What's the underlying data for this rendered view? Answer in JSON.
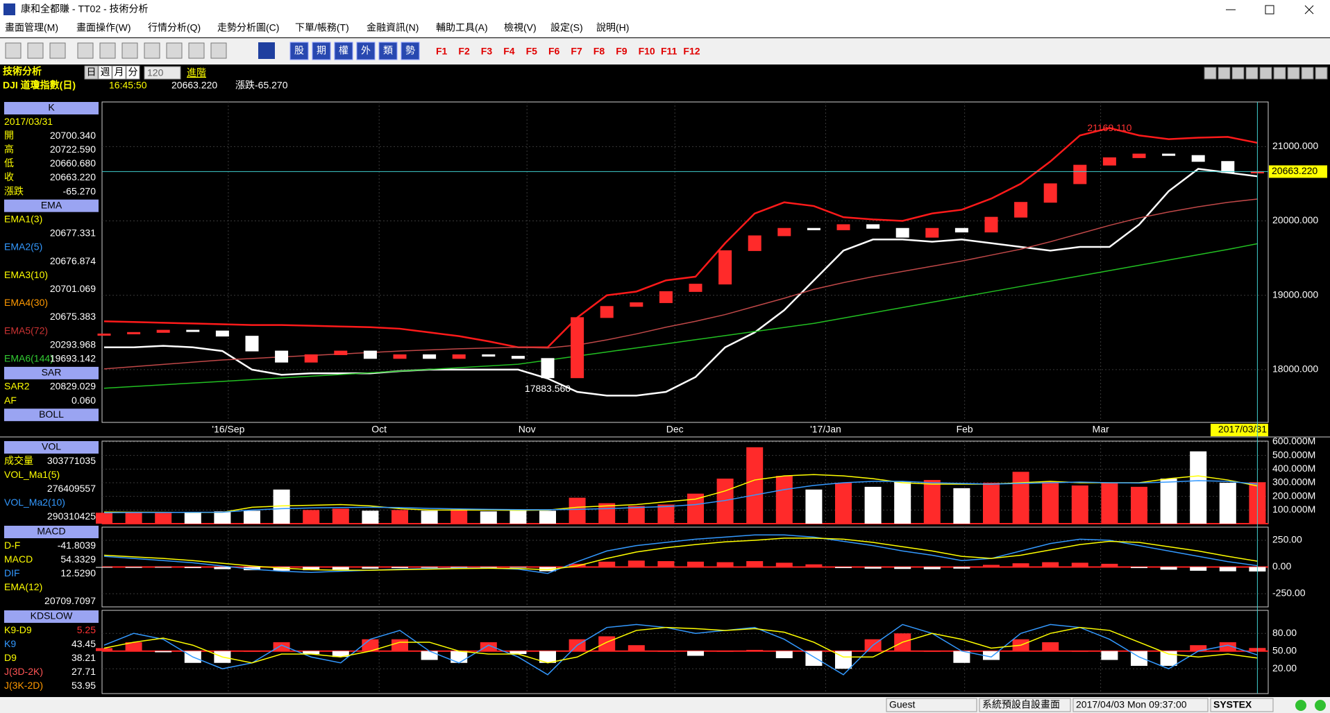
{
  "window": {
    "title": "康和全都賺 - TT02 - 技術分析"
  },
  "menu": [
    "畫面管理(M)",
    "畫面操作(W)",
    "行情分析(Q)",
    "走勢分析圖(C)",
    "下單/帳務(T)",
    "金融資訊(N)",
    "輔助工具(A)",
    "檢視(V)",
    "設定(S)",
    "說明(H)"
  ],
  "toolbar": {
    "buttons": [
      "股",
      "期",
      "權",
      "外",
      "類",
      "勢"
    ],
    "keys": [
      "F1",
      "F2",
      "F3",
      "F4",
      "F5",
      "F6",
      "F7",
      "F8",
      "F9",
      "F10",
      "F11",
      "F12"
    ]
  },
  "info": {
    "title": "技術分析",
    "periods": [
      "日",
      "週",
      "月",
      "分"
    ],
    "count": "120",
    "advanced": "進階",
    "symbol": "DJI  道瓊指數(日)",
    "time": "16:45:50",
    "price": "20663.220",
    "change": "漲跌-65.270"
  },
  "panel": [
    [
      {
        "header": "K"
      },
      {
        "label": "2017/03/31"
      },
      {
        "label": "開",
        "value": "20700.340"
      },
      {
        "label": "高",
        "value": "20722.590"
      },
      {
        "label": "低",
        "value": "20660.680"
      },
      {
        "label": "收",
        "value": "20663.220"
      },
      {
        "label": "漲跌",
        "value": "-65.270"
      },
      {
        "header": "EMA"
      },
      {
        "label": "EMA1(3)"
      },
      {
        "value": "20677.331"
      },
      {
        "label": "EMA2(5)",
        "color": "#3399ff"
      },
      {
        "value": "20676.874"
      },
      {
        "label": "EMA3(10)"
      },
      {
        "value": "20701.069"
      },
      {
        "label": "EMA4(30)",
        "color": "#ff9900"
      },
      {
        "value": "20675.383"
      },
      {
        "label": "EMA5(72)",
        "color": "#cc3333"
      },
      {
        "value": "20293.968"
      },
      {
        "label": "EMA6(144)",
        "color": "#33cc33",
        "value": "19693.142"
      },
      {
        "header": "SAR"
      },
      {
        "label": "SAR2",
        "value": "20829.029"
      },
      {
        "label": "AF",
        "value": "0.060"
      },
      {
        "header": "BOLL"
      }
    ],
    [
      {
        "header": "VOL"
      },
      {
        "label": "成交量",
        "value": "303771035"
      },
      {
        "label": "VOL_Ma1(5)"
      },
      {
        "value": "276409557"
      },
      {
        "label": "VOL_Ma2(10)",
        "color": "#3399ff"
      },
      {
        "value": "290310425"
      }
    ],
    [
      {
        "header": "MACD"
      },
      {
        "label": "D-F",
        "value": "-41.8039"
      },
      {
        "label": "MACD",
        "value": "54.3329"
      },
      {
        "label": "DIF",
        "color": "#3399ff",
        "value": "12.5290"
      },
      {
        "label": "EMA(12)"
      },
      {
        "value": "20709.7097"
      }
    ],
    [
      {
        "header": "KDSLOW"
      },
      {
        "label": "K9-D9",
        "value": "5.25",
        "value_color": "#ff3333"
      },
      {
        "label": "K9",
        "color": "#3399ff",
        "value": "43.45"
      },
      {
        "label": "D9",
        "value": "38.21"
      },
      {
        "label": "J(3D-2K)",
        "color": "#ff5555",
        "value": "27.71"
      },
      {
        "label": "J(3K-2D)",
        "color": "#ff9900",
        "value": "53.95"
      }
    ]
  ],
  "status": [
    "Guest",
    "系統預設自設畫面",
    "2017/04/03 Mon 09:37:00",
    "SYSTEX"
  ],
  "chart_data": [
    {
      "type": "line",
      "ylim": [
        17290,
        21600
      ],
      "yticks": [
        {
          "value": 18000,
          "label": "18000.000"
        },
        {
          "value": 19000,
          "label": "19000.000"
        },
        {
          "value": 20000,
          "label": "20000.000"
        },
        {
          "value": 21000,
          "label": "21000.000"
        }
      ],
      "xticks": [
        {
          "value": 4.2,
          "label": "'16/Sep"
        },
        {
          "value": 9.3,
          "label": "Oct"
        },
        {
          "value": 14.3,
          "label": "Nov"
        },
        {
          "value": 19.3,
          "label": "Dec"
        },
        {
          "value": 24.4,
          "label": "'17/Jan"
        },
        {
          "value": 29.1,
          "label": "Feb"
        },
        {
          "value": 33.7,
          "label": "Mar"
        }
      ],
      "cursor_date": "2017/03/31",
      "series": [
        {
          "color": "#ff1a1a",
          "values": [
            18650,
            18640,
            18630,
            18620,
            18610,
            18600,
            18600,
            18590,
            18580,
            18570,
            18550,
            18500,
            18450,
            18380,
            18300,
            18300,
            18700,
            19000,
            19050,
            19200,
            19250,
            19700,
            20100,
            20250,
            20200,
            20050,
            20020,
            20000,
            20100,
            20150,
            20300,
            20500,
            20800,
            21150,
            21250,
            21150,
            21100,
            21120,
            21130,
            21050
          ]
        },
        {
          "color": "#ffffff",
          "values": [
            18300,
            18300,
            18320,
            18300,
            18250,
            18000,
            17930,
            17950,
            17950,
            17950,
            17980,
            18000,
            18000,
            18000,
            18000,
            17880,
            17700,
            17650,
            17650,
            17700,
            17900,
            18300,
            18500,
            18800,
            19200,
            19600,
            19750,
            19750,
            19720,
            19750,
            19700,
            19650,
            19600,
            19650,
            19650,
            19950,
            20400,
            20700,
            20650,
            20600
          ]
        },
        {
          "color": "#c04848",
          "values": [
            18010,
            18040,
            18070,
            18100,
            18130,
            18150,
            18170,
            18190,
            18210,
            18230,
            18250,
            18265,
            18280,
            18290,
            18300,
            18290,
            18330,
            18400,
            18480,
            18570,
            18650,
            18740,
            18850,
            18960,
            19080,
            19170,
            19250,
            19320,
            19390,
            19460,
            19540,
            19620,
            19720,
            19830,
            19940,
            20040,
            20120,
            20190,
            20250,
            20294
          ]
        },
        {
          "color": "#22c022",
          "values": [
            17750,
            17773,
            17796,
            17819,
            17842,
            17865,
            17888,
            17911,
            17934,
            17957,
            17980,
            18003,
            18026,
            18049,
            18072,
            18127,
            18182,
            18237,
            18292,
            18347,
            18402,
            18457,
            18512,
            18567,
            18622,
            18693,
            18764,
            18835,
            18906,
            18977,
            19048,
            19119,
            19190,
            19261,
            19332,
            19403,
            19474,
            19545,
            19616,
            19693
          ]
        },
        {
          "style": "candle",
          "color": "#ff2a2a",
          "down_color": "#ffffff",
          "values": [
            18480,
            18500,
            18530,
            18520,
            18450,
            18250,
            18100,
            18200,
            18250,
            18150,
            18200,
            18150,
            18200,
            18180,
            18150,
            17890,
            18700,
            18850,
            18900,
            19050,
            19150,
            19600,
            19800,
            19900,
            19880,
            19950,
            19900,
            19780,
            19900,
            19850,
            20050,
            20250,
            20500,
            20750,
            20850,
            20900,
            20880,
            20800,
            20650,
            20663.22
          ]
        }
      ],
      "annotations": [
        {
          "label": "21169.110",
          "value": 21169.11,
          "x": 34,
          "color": "#ff3333"
        },
        {
          "label": "17883.560",
          "value": 17883.56,
          "x": 15,
          "color": "#ffffff"
        }
      ],
      "last_price": {
        "value": 20663.22,
        "label": "20663.220"
      }
    },
    {
      "type": "bar",
      "ylim": [
        0,
        605
      ],
      "color": "#ff2a2a",
      "down_color": "#ffffff",
      "yticks": [
        {
          "value": 100,
          "label": "100.000M"
        },
        {
          "value": 200,
          "label": "200.000M"
        },
        {
          "value": 300,
          "label": "300.000M"
        },
        {
          "value": 400,
          "label": "400.000M"
        },
        {
          "value": 500,
          "label": "500.000M"
        },
        {
          "value": 600,
          "label": "600.000M"
        }
      ],
      "values": [
        80,
        82,
        78,
        85,
        90,
        95,
        250,
        100,
        110,
        95,
        100,
        95,
        105,
        90,
        100,
        95,
        190,
        150,
        130,
        140,
        220,
        330,
        560,
        350,
        250,
        300,
        270,
        310,
        320,
        260,
        300,
        380,
        310,
        280,
        300,
        270,
        330,
        530,
        300,
        303.77
      ],
      "series": [
        {
          "color": "#ffff00",
          "values": [
            85,
            84,
            83,
            82,
            83,
            120,
            130,
            135,
            140,
            130,
            110,
            100,
            100,
            100,
            98,
            100,
            120,
            130,
            140,
            160,
            180,
            240,
            320,
            350,
            360,
            350,
            330,
            300,
            290,
            290,
            290,
            300,
            310,
            300,
            300,
            300,
            330,
            350,
            320,
            276.41
          ]
        },
        {
          "color": "#3399ff",
          "values": [
            80,
            82,
            82,
            83,
            84,
            100,
            110,
            115,
            118,
            120,
            118,
            112,
            108,
            105,
            103,
            102,
            105,
            110,
            118,
            125,
            140,
            170,
            210,
            250,
            280,
            300,
            310,
            310,
            300,
            295,
            290,
            295,
            300,
            305,
            300,
            298,
            305,
            315,
            310,
            290.31
          ]
        }
      ]
    },
    {
      "type": "bar",
      "ylim": [
        -373,
        373
      ],
      "color": "#ff2a2a",
      "down_color": "#ffffff",
      "yticks": [
        {
          "value": -250,
          "label": "-250.00"
        },
        {
          "value": 0,
          "label": "0.00"
        },
        {
          "value": 250,
          "label": "250.00"
        }
      ],
      "values": [
        -5,
        -8,
        -6,
        -10,
        -20,
        -30,
        -35,
        -30,
        -25,
        -15,
        -10,
        -8,
        -5,
        -3,
        -5,
        -40,
        30,
        50,
        60,
        55,
        50,
        45,
        55,
        40,
        25,
        -10,
        -15,
        -18,
        -20,
        -15,
        20,
        35,
        45,
        40,
        30,
        -10,
        -25,
        -35,
        -40,
        -41.8
      ],
      "series": [
        {
          "color": "#3399ff",
          "values": [
            100,
            80,
            60,
            40,
            10,
            -20,
            -40,
            -50,
            -40,
            -30,
            -20,
            -15,
            -10,
            -10,
            -20,
            -60,
            50,
            150,
            200,
            230,
            260,
            280,
            300,
            300,
            280,
            240,
            200,
            150,
            110,
            60,
            80,
            150,
            220,
            260,
            250,
            200,
            150,
            100,
            50,
            12.53
          ]
        },
        {
          "color": "#ffff00",
          "values": [
            110,
            95,
            80,
            60,
            35,
            10,
            -10,
            -25,
            -30,
            -30,
            -25,
            -20,
            -15,
            -12,
            -15,
            -25,
            10,
            80,
            140,
            180,
            210,
            235,
            250,
            270,
            270,
            260,
            230,
            190,
            150,
            100,
            80,
            110,
            160,
            210,
            240,
            230,
            190,
            150,
            100,
            54.33
          ]
        }
      ]
    },
    {
      "type": "bar",
      "ylim": [
        -22,
        119
      ],
      "base": 50,
      "color": "#ff2a2a",
      "down_color": "#ffffff",
      "yticks": [
        {
          "value": 20,
          "label": "20.00"
        },
        {
          "value": 50,
          "label": "50.00"
        },
        {
          "value": 80,
          "label": "80.00"
        }
      ],
      "values": [
        5,
        15,
        -2,
        -20,
        -20,
        0,
        15,
        -5,
        -10,
        20,
        20,
        -15,
        -20,
        15,
        -5,
        -20,
        20,
        25,
        10,
        0,
        -8,
        0,
        2,
        -12,
        -25,
        -30,
        20,
        30,
        0,
        -20,
        -15,
        20,
        15,
        0,
        -15,
        -25,
        -25,
        10,
        15,
        5.25
      ],
      "series": [
        {
          "color": "#3399ff",
          "values": [
            60,
            80,
            70,
            40,
            20,
            30,
            60,
            40,
            30,
            70,
            85,
            50,
            30,
            60,
            40,
            10,
            60,
            90,
            95,
            90,
            80,
            85,
            90,
            70,
            40,
            10,
            60,
            95,
            80,
            50,
            40,
            80,
            95,
            90,
            70,
            40,
            20,
            50,
            60,
            43.45
          ]
        },
        {
          "color": "#ffff00",
          "values": [
            55,
            65,
            72,
            60,
            40,
            30,
            45,
            45,
            40,
            50,
            65,
            65,
            50,
            45,
            45,
            30,
            40,
            65,
            85,
            90,
            88,
            85,
            88,
            82,
            65,
            40,
            40,
            65,
            80,
            70,
            55,
            60,
            80,
            90,
            85,
            65,
            45,
            40,
            45,
            38.21
          ]
        }
      ]
    }
  ]
}
